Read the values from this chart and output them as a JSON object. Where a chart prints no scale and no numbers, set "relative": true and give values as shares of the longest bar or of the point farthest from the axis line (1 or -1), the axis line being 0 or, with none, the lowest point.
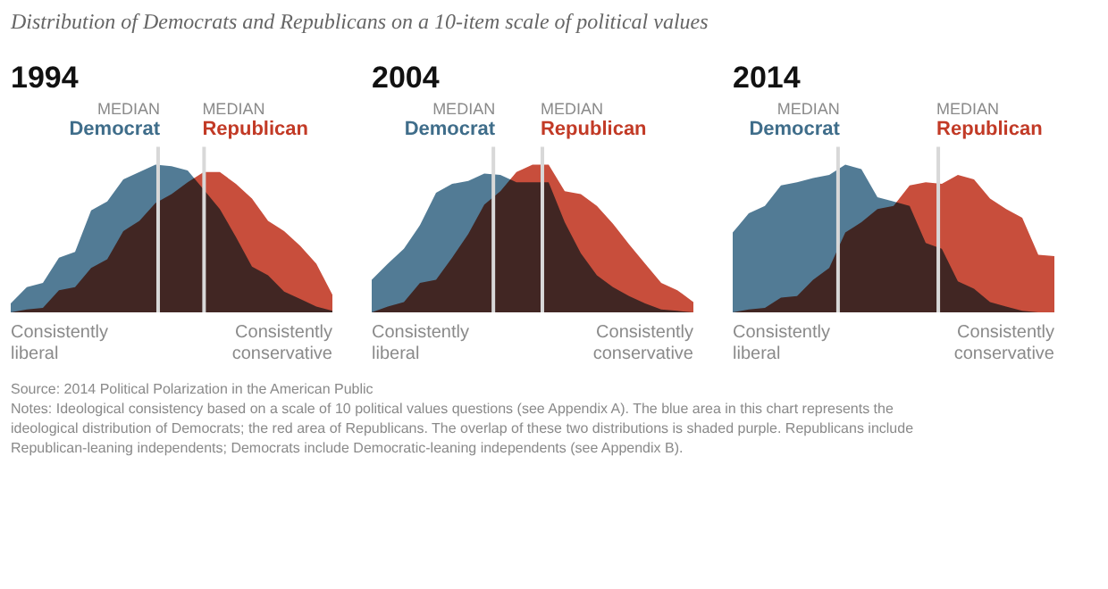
{
  "chart_data": [
    {
      "type": "other",
      "title": "Distribution of Democrats and Republicans on a 10-item scale of political values",
      "annotations": [
        "Source: 2014 Political Polarization in the American Public",
        "Notes: Ideological consistency based on a scale of 10 political values questions (see Appendix A). The blue area in this chart represents the ideological distribution of Democrats; the red area of Republicans. The overlap of these two distributions is shaded purple. Republicans include Republican-leaning independents; Democrats include Democratic-leaning independents (see Appendix B)."
      ]
    },
    {
      "type": "area",
      "title": "1994",
      "relative": true,
      "categories": [
        null,
        null,
        null,
        null,
        null,
        null,
        null,
        null,
        null,
        null,
        null,
        null,
        null,
        null,
        null,
        null,
        null,
        null,
        null,
        null,
        null
      ],
      "tick_labels": false,
      "series": [
        {
          "name": "Democrat",
          "color": "#3f6d8a",
          "values": [
            0.06,
            0.17,
            0.2,
            0.37,
            0.41,
            0.69,
            0.75,
            0.9,
            0.95,
            1.0,
            0.99,
            0.96,
            0.83,
            0.7,
            0.51,
            0.31,
            0.25,
            0.14,
            0.09,
            0.04,
            0.01
          ]
        },
        {
          "name": "Republican",
          "color": "#c23a26",
          "values": [
            0.0,
            0.02,
            0.03,
            0.15,
            0.17,
            0.3,
            0.36,
            0.55,
            0.62,
            0.74,
            0.8,
            0.88,
            0.95,
            0.95,
            0.87,
            0.77,
            0.62,
            0.55,
            0.45,
            0.33,
            0.12
          ]
        }
      ],
      "annotations": [
        "Consistently\nliberal",
        "Consistently\nconservative",
        "MEDIAN",
        "MEDIAN"
      ]
    },
    {
      "type": "area",
      "title": "2004",
      "relative": true,
      "categories": [
        null,
        null,
        null,
        null,
        null,
        null,
        null,
        null,
        null,
        null,
        null,
        null,
        null,
        null,
        null,
        null,
        null,
        null,
        null,
        null,
        null
      ],
      "tick_labels": false,
      "series": [
        {
          "name": "Democrat",
          "color": "#3f6d8a",
          "values": [
            0.22,
            0.33,
            0.43,
            0.59,
            0.81,
            0.87,
            0.89,
            0.94,
            0.93,
            0.88,
            0.88,
            0.88,
            0.61,
            0.4,
            0.25,
            0.17,
            0.11,
            0.06,
            0.02,
            0.01,
            0.0
          ]
        },
        {
          "name": "Republican",
          "color": "#c23a26",
          "values": [
            0.0,
            0.04,
            0.07,
            0.2,
            0.22,
            0.37,
            0.53,
            0.73,
            0.82,
            0.95,
            1.0,
            1.0,
            0.82,
            0.8,
            0.72,
            0.6,
            0.46,
            0.33,
            0.2,
            0.15,
            0.07
          ]
        }
      ],
      "annotations": [
        "Consistently\nliberal",
        "Consistently\nconservative",
        "MEDIAN",
        "MEDIAN"
      ]
    },
    {
      "type": "area",
      "title": "2014",
      "relative": true,
      "categories": [
        null,
        null,
        null,
        null,
        null,
        null,
        null,
        null,
        null,
        null,
        null,
        null,
        null,
        null,
        null,
        null,
        null,
        null,
        null,
        null,
        null
      ],
      "tick_labels": false,
      "series": [
        {
          "name": "Democrat",
          "color": "#3f6d8a",
          "values": [
            0.54,
            0.67,
            0.72,
            0.86,
            0.88,
            0.91,
            0.93,
            1.0,
            0.97,
            0.78,
            0.75,
            0.72,
            0.47,
            0.43,
            0.21,
            0.16,
            0.07,
            0.04,
            0.01,
            0.0,
            0.0
          ]
        },
        {
          "name": "Republican",
          "color": "#c23a26",
          "values": [
            0.0,
            0.02,
            0.03,
            0.1,
            0.11,
            0.22,
            0.3,
            0.54,
            0.61,
            0.7,
            0.72,
            0.86,
            0.88,
            0.87,
            0.93,
            0.9,
            0.77,
            0.7,
            0.64,
            0.39,
            0.38
          ]
        }
      ],
      "annotations": [
        "Consistently\nliberal",
        "Consistently\nconservative",
        "MEDIAN",
        "MEDIAN"
      ]
    }
  ]
}
